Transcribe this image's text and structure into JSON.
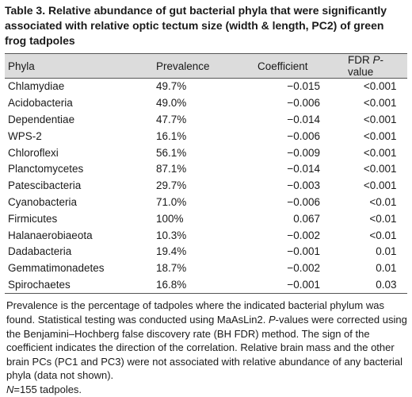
{
  "caption": {
    "label": "Table 3.",
    "text": "Relative abundance of gut bacterial phyla that were significantly associated with relative optic tectum size (width & length, PC2) of green frog tadpoles"
  },
  "columns": {
    "phyla": "Phyla",
    "prevalence": "Prevalence",
    "coefficient": "Coefficient",
    "fdr_prefix": "FDR ",
    "fdr_italic": "P",
    "fdr_suffix": "-value"
  },
  "rows": [
    {
      "phyla": "Chlamydiae",
      "prevalence": "49.7%",
      "coefficient": "−0.015",
      "fdr": "<0.001"
    },
    {
      "phyla": "Acidobacteria",
      "prevalence": "49.0%",
      "coefficient": "−0.006",
      "fdr": "<0.001"
    },
    {
      "phyla": "Dependentiae",
      "prevalence": "47.7%",
      "coefficient": "−0.014",
      "fdr": "<0.001"
    },
    {
      "phyla": "WPS-2",
      "prevalence": "16.1%",
      "coefficient": "−0.006",
      "fdr": "<0.001"
    },
    {
      "phyla": "Chloroflexi",
      "prevalence": "56.1%",
      "coefficient": "−0.009",
      "fdr": "<0.001"
    },
    {
      "phyla": "Planctomycetes",
      "prevalence": "87.1%",
      "coefficient": "−0.014",
      "fdr": "<0.001"
    },
    {
      "phyla": "Patescibacteria",
      "prevalence": "29.7%",
      "coefficient": "−0.003",
      "fdr": "<0.001"
    },
    {
      "phyla": "Cyanobacteria",
      "prevalence": "71.0%",
      "coefficient": "−0.006",
      "fdr": "<0.01"
    },
    {
      "phyla": "Firmicutes",
      "prevalence": "100%",
      "coefficient": "0.067",
      "fdr": "<0.01"
    },
    {
      "phyla": "Halanaerobiaeota",
      "prevalence": "10.3%",
      "coefficient": "−0.002",
      "fdr": "<0.01"
    },
    {
      "phyla": "Dadabacteria",
      "prevalence": "19.4%",
      "coefficient": "−0.001",
      "fdr": "0.01"
    },
    {
      "phyla": "Gemmatimonadetes",
      "prevalence": "18.7%",
      "coefficient": "−0.002",
      "fdr": "0.01"
    },
    {
      "phyla": "Spirochaetes",
      "prevalence": "16.8%",
      "coefficient": "−0.001",
      "fdr": "0.03"
    }
  ],
  "footnote": {
    "s1": "Prevalence is the percentage of tadpoles where the indicated bacterial phylum was found. Statistical testing was conducted using MaAsLin2. ",
    "s2_italic": "P",
    "s2": "-values were corrected using the Benjamini–Hochberg false discovery rate (BH FDR) method. The sign of the coefficient indicates the direction of the correlation. Relative brain mass and the other brain PCs (PC1 and PC3) were not associated with relative abundance of any bacterial phyla (data not shown).",
    "n_italic": "N",
    "n_text": "=155 tadpoles."
  }
}
